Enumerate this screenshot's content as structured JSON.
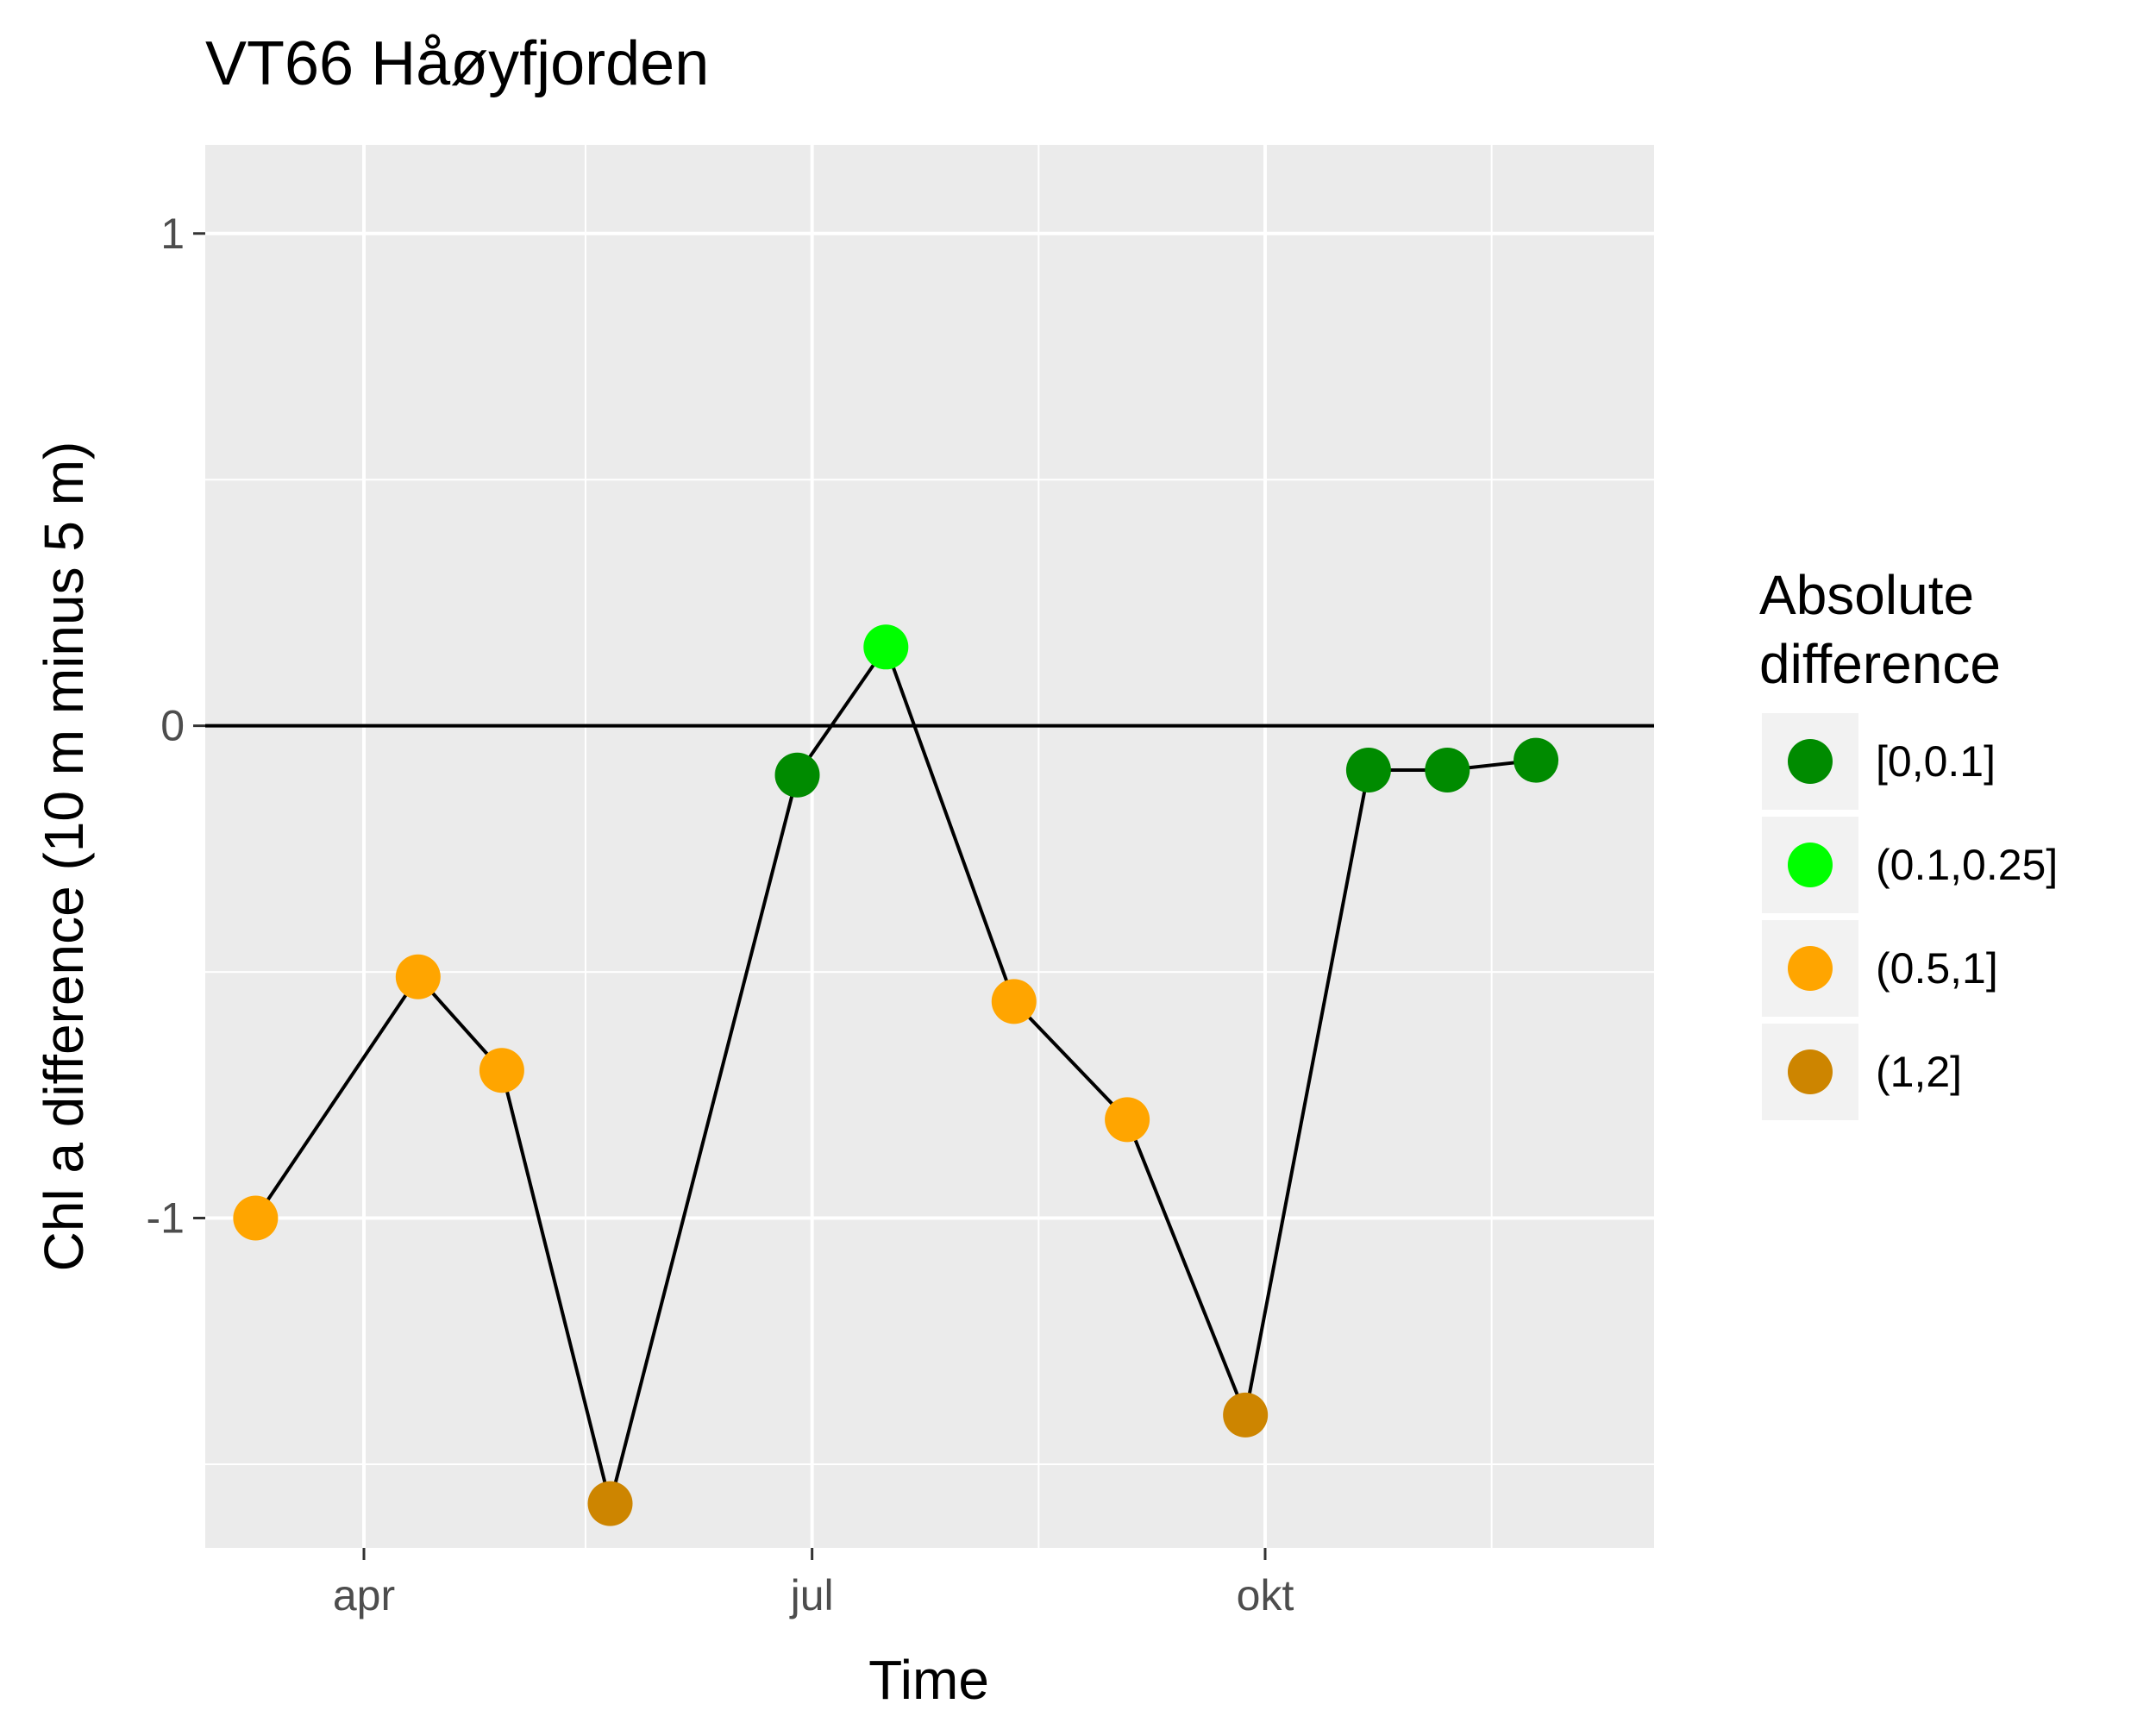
{
  "chart_data": {
    "type": "line",
    "title": "VT66 Håøyfjorden",
    "xlabel": "Time",
    "ylabel": "Chl a difference (10 m minus 5 m)",
    "x_ticks": [
      "apr",
      "jul",
      "okt"
    ],
    "y_ticks": [
      "1",
      "0",
      "-1"
    ],
    "ylim": [
      -1.67,
      1.18
    ],
    "grid": true,
    "reference_line_y": 0,
    "legend": {
      "title_lines": [
        "Absolute",
        "difference"
      ],
      "position": "right",
      "entries": [
        {
          "label": "[0,0.1]",
          "color": "#008B00"
        },
        {
          "label": "(0.1,0.25]",
          "color": "#00FF00"
        },
        {
          "label": "(0.5,1]",
          "color": "#FFA500"
        },
        {
          "label": "(1,2]",
          "color": "#CD8500"
        }
      ]
    },
    "points": [
      {
        "date": "2017-03-10",
        "y": -1.0,
        "category": "(0.5,1]"
      },
      {
        "date": "2017-04-12",
        "y": -0.51,
        "category": "(0.5,1]"
      },
      {
        "date": "2017-04-29",
        "y": -0.7,
        "category": "(0.5,1]"
      },
      {
        "date": "2017-05-21",
        "y": -1.58,
        "category": "(1,2]"
      },
      {
        "date": "2017-06-28",
        "y": -0.1,
        "category": "[0,0.1]"
      },
      {
        "date": "2017-07-16",
        "y": 0.16,
        "category": "(0.1,0.25]"
      },
      {
        "date": "2017-08-11",
        "y": -0.56,
        "category": "(0.5,1]"
      },
      {
        "date": "2017-09-03",
        "y": -0.8,
        "category": "(0.5,1]"
      },
      {
        "date": "2017-09-27",
        "y": -1.4,
        "category": "(1,2]"
      },
      {
        "date": "2017-10-22",
        "y": -0.09,
        "category": "[0,0.1]"
      },
      {
        "date": "2017-11-07",
        "y": -0.09,
        "category": "[0,0.1]"
      },
      {
        "date": "2017-11-25",
        "y": -0.07,
        "category": "[0,0.1]"
      }
    ],
    "colors": {
      "panel": "#EBEBEB",
      "grid": "#FFFFFF",
      "line": "#000000",
      "tick_text": "#4D4D4D",
      "text": "#000000",
      "legend_key_bg": "#F2F2F2"
    }
  }
}
